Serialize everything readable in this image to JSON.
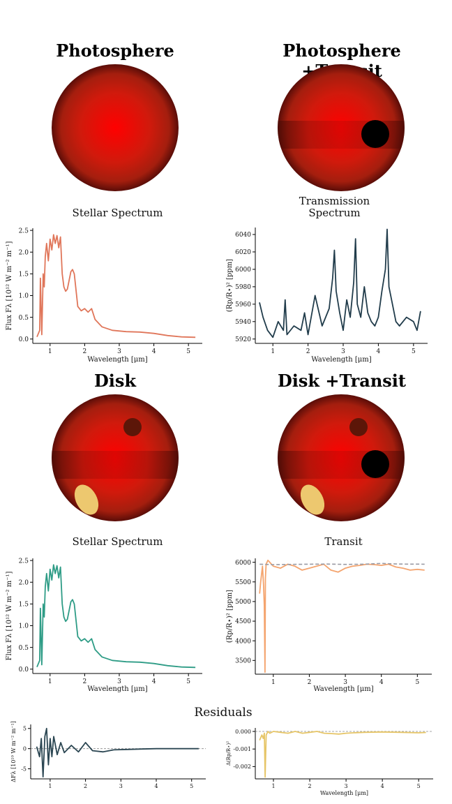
{
  "colors": {
    "spectrum1": "#e0765a",
    "spectrum2": "#2e9c86",
    "transmission": "#213c4b",
    "transit": "#f4a46e",
    "transit_dash": "#999aa3",
    "resid_flux": "#2b4652",
    "resid_transit": "#e6c567",
    "star_center": "#ff0000",
    "star_edge": "#5a0d08",
    "spot_dark": "#5c1608",
    "facula": "#edc86f",
    "planet": "#000000"
  },
  "panels": {
    "photosphere": {
      "title": "Photosphere"
    },
    "photosphere_transit": {
      "title": "Photosphere +Transit"
    },
    "disk": {
      "title": "Disk"
    },
    "disk_transit": {
      "title": "Disk +Transit"
    }
  },
  "residuals": {
    "title": "Residuals"
  },
  "chart_data": [
    {
      "id": "stellar_spectrum_photosphere",
      "type": "line",
      "title": "Stellar Spectrum",
      "xlabel": "Wavelength [μm]",
      "ylabel": "Flux F_λ [10^12 W m^-2 m^-1]",
      "xlim": [
        0.5,
        5.4
      ],
      "ylim": [
        -0.1,
        2.55
      ],
      "xticks": [
        "1",
        "2",
        "3",
        "4",
        "5"
      ],
      "yticks": [
        "0.0",
        "0.5",
        "1.0",
        "1.5",
        "2.0",
        "2.5"
      ],
      "series": [
        {
          "name": "flux",
          "x": [
            0.62,
            0.7,
            0.72,
            0.76,
            0.8,
            0.83,
            0.86,
            0.9,
            0.95,
            1.0,
            1.05,
            1.1,
            1.15,
            1.2,
            1.25,
            1.3,
            1.35,
            1.4,
            1.45,
            1.5,
            1.55,
            1.6,
            1.65,
            1.7,
            1.8,
            1.9,
            2.0,
            2.1,
            2.2,
            2.3,
            2.5,
            2.8,
            3.2,
            3.6,
            4.0,
            4.4,
            4.8,
            5.2
          ],
          "y": [
            0.05,
            0.2,
            1.4,
            0.1,
            1.5,
            1.2,
            1.9,
            2.2,
            1.8,
            2.3,
            2.05,
            2.4,
            2.2,
            2.38,
            2.1,
            2.35,
            1.5,
            1.2,
            1.1,
            1.15,
            1.35,
            1.55,
            1.6,
            1.5,
            0.75,
            0.65,
            0.7,
            0.62,
            0.7,
            0.45,
            0.28,
            0.2,
            0.17,
            0.16,
            0.13,
            0.08,
            0.05,
            0.04
          ]
        }
      ]
    },
    {
      "id": "transmission_spectrum",
      "type": "line",
      "title": "Transmission\nSpectrum",
      "xlabel": "Wavelength [μm]",
      "ylabel": "(Rp/R*)^2 [ppm]",
      "xlim": [
        0.5,
        5.4
      ],
      "ylim": [
        5915,
        6048
      ],
      "xticks": [
        "1",
        "2",
        "3",
        "4",
        "5"
      ],
      "yticks": [
        "5920",
        "5940",
        "5960",
        "5980",
        "6000",
        "6020",
        "6040"
      ],
      "series": [
        {
          "name": "depth",
          "x": [
            0.62,
            0.72,
            0.85,
            1.0,
            1.15,
            1.3,
            1.35,
            1.4,
            1.6,
            1.8,
            1.9,
            2.0,
            2.2,
            2.4,
            2.6,
            2.7,
            2.75,
            2.8,
            2.9,
            3.0,
            3.1,
            3.2,
            3.3,
            3.35,
            3.4,
            3.5,
            3.6,
            3.7,
            3.8,
            3.9,
            4.0,
            4.1,
            4.2,
            4.25,
            4.3,
            4.4,
            4.5,
            4.6,
            4.8,
            5.0,
            5.1,
            5.2
          ],
          "y": [
            5962,
            5945,
            5930,
            5922,
            5940,
            5930,
            5965,
            5925,
            5935,
            5930,
            5950,
            5925,
            5970,
            5935,
            5955,
            5990,
            6022,
            5975,
            5950,
            5930,
            5965,
            5945,
            5985,
            6035,
            5960,
            5945,
            5980,
            5950,
            5940,
            5935,
            5945,
            5975,
            6000,
            6046,
            5980,
            5960,
            5940,
            5935,
            5945,
            5940,
            5930,
            5952
          ]
        }
      ]
    },
    {
      "id": "stellar_spectrum_disk",
      "type": "line",
      "title": "Stellar Spectrum",
      "xlabel": "Wavelength [μm]",
      "ylabel": "Flux F_λ [10^12 W m^-2 m^-1]",
      "xlim": [
        0.5,
        5.4
      ],
      "ylim": [
        -0.1,
        2.55
      ],
      "xticks": [
        "1",
        "2",
        "3",
        "4",
        "5"
      ],
      "yticks": [
        "0.0",
        "0.5",
        "1.0",
        "1.5",
        "2.0",
        "2.5"
      ],
      "series": [
        {
          "name": "flux",
          "x": [
            0.62,
            0.7,
            0.72,
            0.76,
            0.8,
            0.83,
            0.86,
            0.9,
            0.95,
            1.0,
            1.05,
            1.1,
            1.15,
            1.2,
            1.25,
            1.3,
            1.35,
            1.4,
            1.45,
            1.5,
            1.55,
            1.6,
            1.65,
            1.7,
            1.8,
            1.9,
            2.0,
            2.1,
            2.2,
            2.3,
            2.5,
            2.8,
            3.2,
            3.6,
            4.0,
            4.4,
            4.8,
            5.2
          ],
          "y": [
            0.05,
            0.2,
            1.4,
            0.1,
            1.5,
            1.2,
            1.9,
            2.2,
            1.8,
            2.3,
            2.05,
            2.4,
            2.2,
            2.38,
            2.1,
            2.35,
            1.5,
            1.2,
            1.1,
            1.15,
            1.35,
            1.55,
            1.6,
            1.5,
            0.75,
            0.65,
            0.7,
            0.62,
            0.7,
            0.45,
            0.28,
            0.2,
            0.17,
            0.16,
            0.13,
            0.08,
            0.05,
            0.04
          ]
        }
      ]
    },
    {
      "id": "transit",
      "type": "line",
      "title": "Transit",
      "xlabel": "Wavelength [μm]",
      "ylabel": "(Rp/R*)^2 [ppm]",
      "xlim": [
        0.5,
        5.4
      ],
      "ylim": [
        3150,
        6100
      ],
      "xticks": [
        "1",
        "2",
        "3",
        "4",
        "5"
      ],
      "yticks": [
        "3500",
        "4000",
        "4500",
        "5000",
        "5500",
        "6000"
      ],
      "series": [
        {
          "name": "transit",
          "x": [
            0.62,
            0.65,
            0.7,
            0.73,
            0.75,
            0.77,
            0.78,
            0.8,
            0.85,
            0.9,
            1.0,
            1.2,
            1.4,
            1.6,
            1.8,
            2.0,
            2.2,
            2.4,
            2.6,
            2.8,
            3.0,
            3.2,
            3.4,
            3.6,
            3.8,
            4.0,
            4.2,
            4.4,
            4.6,
            4.8,
            5.0,
            5.2
          ],
          "y": [
            5200,
            5500,
            5900,
            5400,
            4900,
            3200,
            5600,
            5950,
            6050,
            6000,
            5900,
            5850,
            5950,
            5900,
            5800,
            5850,
            5900,
            5950,
            5800,
            5750,
            5850,
            5900,
            5920,
            5950,
            5940,
            5920,
            5950,
            5880,
            5850,
            5800,
            5820,
            5800
          ]
        },
        {
          "name": "photosphere_transit",
          "style": "dashed",
          "x": [
            0.62,
            1.0,
            1.5,
            2.0,
            2.5,
            3.0,
            3.5,
            4.0,
            4.5,
            5.2
          ],
          "y": [
            5950,
            5940,
            5945,
            5950,
            5955,
            5945,
            5950,
            5970,
            5955,
            5950
          ]
        }
      ]
    },
    {
      "id": "residuals_flux",
      "type": "line",
      "title": "",
      "xlabel": "",
      "ylabel": "ΔF_λ [10^10 W m^-2 m^-1]",
      "xlim": [
        0.45,
        5.4
      ],
      "ylim": [
        -7.5,
        6
      ],
      "xticks": [
        "1",
        "2",
        "3",
        "4",
        "5"
      ],
      "yticks": [
        "-5",
        "0",
        "5"
      ],
      "series": [
        {
          "name": "residual",
          "x": [
            0.62,
            0.7,
            0.75,
            0.8,
            0.85,
            0.9,
            0.95,
            1.0,
            1.05,
            1.1,
            1.2,
            1.3,
            1.4,
            1.6,
            1.8,
            2.0,
            2.2,
            2.5,
            2.8,
            3.2,
            3.6,
            4.0,
            4.5,
            5.2
          ],
          "y": [
            0.5,
            -2.0,
            2.5,
            -7.0,
            3.0,
            5.0,
            -4.0,
            2.5,
            -2.0,
            3.0,
            -1.5,
            1.5,
            -1.0,
            0.8,
            -0.8,
            1.5,
            -0.5,
            -0.8,
            -0.3,
            -0.2,
            -0.1,
            0.0,
            0.0,
            0.0
          ]
        }
      ]
    },
    {
      "id": "residuals_transit",
      "type": "line",
      "title": "",
      "xlabel": "Wavelength [μm]",
      "ylabel": "Δ(Rp/R*)^2",
      "xlim": [
        0.5,
        5.4
      ],
      "ylim": [
        -0.0027,
        0.0002
      ],
      "xticks": [
        "1",
        "2",
        "3",
        "4",
        "5"
      ],
      "yticks": [
        "0.000",
        "-0.001",
        "-0.002"
      ],
      "series": [
        {
          "name": "residual",
          "x": [
            0.62,
            0.68,
            0.72,
            0.75,
            0.77,
            0.8,
            0.85,
            0.9,
            1.0,
            1.2,
            1.4,
            1.6,
            1.8,
            2.0,
            2.2,
            2.4,
            2.6,
            2.8,
            3.0,
            3.2,
            3.5,
            4.0,
            4.5,
            5.0,
            5.2
          ],
          "y": [
            -0.0005,
            -0.0002,
            -0.0004,
            -0.0001,
            -0.0026,
            -0.0002,
            0.0,
            -0.0001,
            0.0,
            -5e-05,
            -0.0001,
            0.0,
            -0.0001,
            -5e-05,
            0.0,
            -0.0001,
            -0.00012,
            -0.00015,
            -0.0001,
            -8e-05,
            -5e-05,
            -3e-05,
            -5e-05,
            -8e-05,
            -6e-05
          ]
        }
      ]
    }
  ]
}
